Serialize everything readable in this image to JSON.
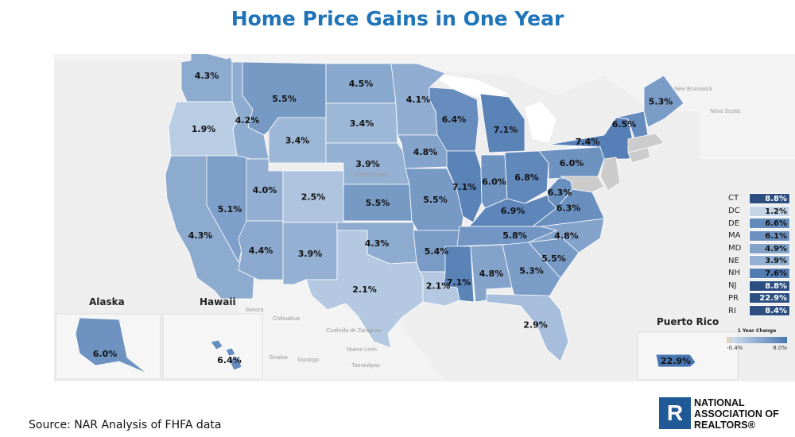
{
  "title": "Home Price Gains in One Year",
  "source": "Source: NAR Analysis of FHFA data",
  "logo": {
    "lines": [
      "NATIONAL",
      "ASSOCIATION OF",
      "REALTORS®"
    ],
    "mark": "R"
  },
  "regions": {
    "alaska": "Alaska",
    "hawaii": "Hawaii",
    "puerto_rico": "Puerto Rico"
  },
  "geo_labels": [
    "Sonora",
    "Chihuahua",
    "Coahuila de Zaragoza",
    "Nuevo León",
    "Sinaloa",
    "Durango",
    "Tamaulipas",
    "New Brunswick",
    "Nova Scotia",
    "United States"
  ],
  "legend": {
    "title": "1 Year Change",
    "min_label": "-0.4%",
    "max_label": "8.0%",
    "min": -0.4,
    "max": 8.0,
    "color_low": "#e6d6b4",
    "color_high": "#4a77b1"
  },
  "small_states": [
    {
      "abbr": "CT",
      "value": "8.8%",
      "v": 8.8
    },
    {
      "abbr": "DC",
      "value": "1.2%",
      "v": 1.2
    },
    {
      "abbr": "DE",
      "value": "6.6%",
      "v": 6.6
    },
    {
      "abbr": "MA",
      "value": "6.1%",
      "v": 6.1
    },
    {
      "abbr": "MD",
      "value": "4.9%",
      "v": 4.9
    },
    {
      "abbr": "NE",
      "value": "3.9%",
      "v": 3.9
    },
    {
      "abbr": "NH",
      "value": "7.6%",
      "v": 7.6
    },
    {
      "abbr": "NJ",
      "value": "8.8%",
      "v": 8.8
    },
    {
      "abbr": "PR",
      "value": "22.9%",
      "v": 22.9
    },
    {
      "abbr": "RI",
      "value": "8.4%",
      "v": 8.4
    }
  ],
  "chart_data": {
    "type": "choropleth",
    "title": "Home Price Gains in One Year",
    "metric": "1 Year Change",
    "unit": "%",
    "states": {
      "WA": 4.3,
      "OR": 1.9,
      "CA": 4.3,
      "ID": 4.2,
      "NV": 5.1,
      "MT": 5.5,
      "WY": 3.4,
      "UT": 4.0,
      "AZ": 4.4,
      "CO": 2.5,
      "NM": 3.9,
      "ND": 4.5,
      "SD": 3.4,
      "NE": 3.9,
      "KS": 5.5,
      "OK": 4.3,
      "TX": 2.1,
      "MN": 4.1,
      "IA": 4.8,
      "MO": 5.5,
      "AR": 5.4,
      "LA": 2.1,
      "WI": 6.4,
      "IL": 7.1,
      "MI": 7.1,
      "IN": 6.0,
      "OH": 6.8,
      "KY": 6.9,
      "TN": 5.8,
      "MS": 7.1,
      "AL": 4.8,
      "GA": 5.3,
      "FL": 2.9,
      "SC": 5.5,
      "NC": 4.8,
      "VA": 6.3,
      "WV": 6.3,
      "PA": 6.0,
      "NY": 7.4,
      "VT": 6.5,
      "ME": 5.3,
      "AK": 6.0,
      "HI": 6.4,
      "PR": 22.9
    }
  },
  "state_labels": [
    {
      "id": "WA",
      "text": "4.3%"
    },
    {
      "id": "OR",
      "text": "1.9%"
    },
    {
      "id": "CA",
      "text": "4.3%"
    },
    {
      "id": "ID",
      "text": "4.2%"
    },
    {
      "id": "NV",
      "text": "5.1%"
    },
    {
      "id": "MT",
      "text": "5.5%"
    },
    {
      "id": "WY",
      "text": "3.4%"
    },
    {
      "id": "UT",
      "text": "4.0%"
    },
    {
      "id": "AZ",
      "text": "4.4%"
    },
    {
      "id": "CO",
      "text": "2.5%"
    },
    {
      "id": "NM",
      "text": "3.9%"
    },
    {
      "id": "ND",
      "text": "4.5%"
    },
    {
      "id": "SD",
      "text": "3.4%"
    },
    {
      "id": "NE",
      "text": "3.9%"
    },
    {
      "id": "KS",
      "text": "5.5%"
    },
    {
      "id": "OK",
      "text": "4.3%"
    },
    {
      "id": "TX",
      "text": "2.1%"
    },
    {
      "id": "MN",
      "text": "4.1%"
    },
    {
      "id": "IA",
      "text": "4.8%"
    },
    {
      "id": "MO",
      "text": "5.5%"
    },
    {
      "id": "AR",
      "text": "5.4%"
    },
    {
      "id": "LA",
      "text": "2.1%"
    },
    {
      "id": "WI",
      "text": "6.4%"
    },
    {
      "id": "IL",
      "text": "7.1%"
    },
    {
      "id": "MI",
      "text": "7.1%"
    },
    {
      "id": "IN",
      "text": "6.0%"
    },
    {
      "id": "OH",
      "text": "6.8%"
    },
    {
      "id": "KY",
      "text": "6.9%"
    },
    {
      "id": "TN",
      "text": "5.8%"
    },
    {
      "id": "MS",
      "text": "7.1%"
    },
    {
      "id": "AL",
      "text": "4.8%"
    },
    {
      "id": "GA",
      "text": "5.3%"
    },
    {
      "id": "FL",
      "text": "2.9%"
    },
    {
      "id": "SC",
      "text": "5.5%"
    },
    {
      "id": "NC",
      "text": "4.8%"
    },
    {
      "id": "VA",
      "text": "6.3%"
    },
    {
      "id": "WV",
      "text": "6.3%"
    },
    {
      "id": "PA",
      "text": "6.0%"
    },
    {
      "id": "NY",
      "text": "7.4%"
    },
    {
      "id": "VT",
      "text": "6.5%"
    },
    {
      "id": "ME",
      "text": "5.3%"
    },
    {
      "id": "AK",
      "text": "6.0%"
    },
    {
      "id": "HI",
      "text": "6.4%"
    },
    {
      "id": "PR",
      "text": "22.9%"
    }
  ]
}
